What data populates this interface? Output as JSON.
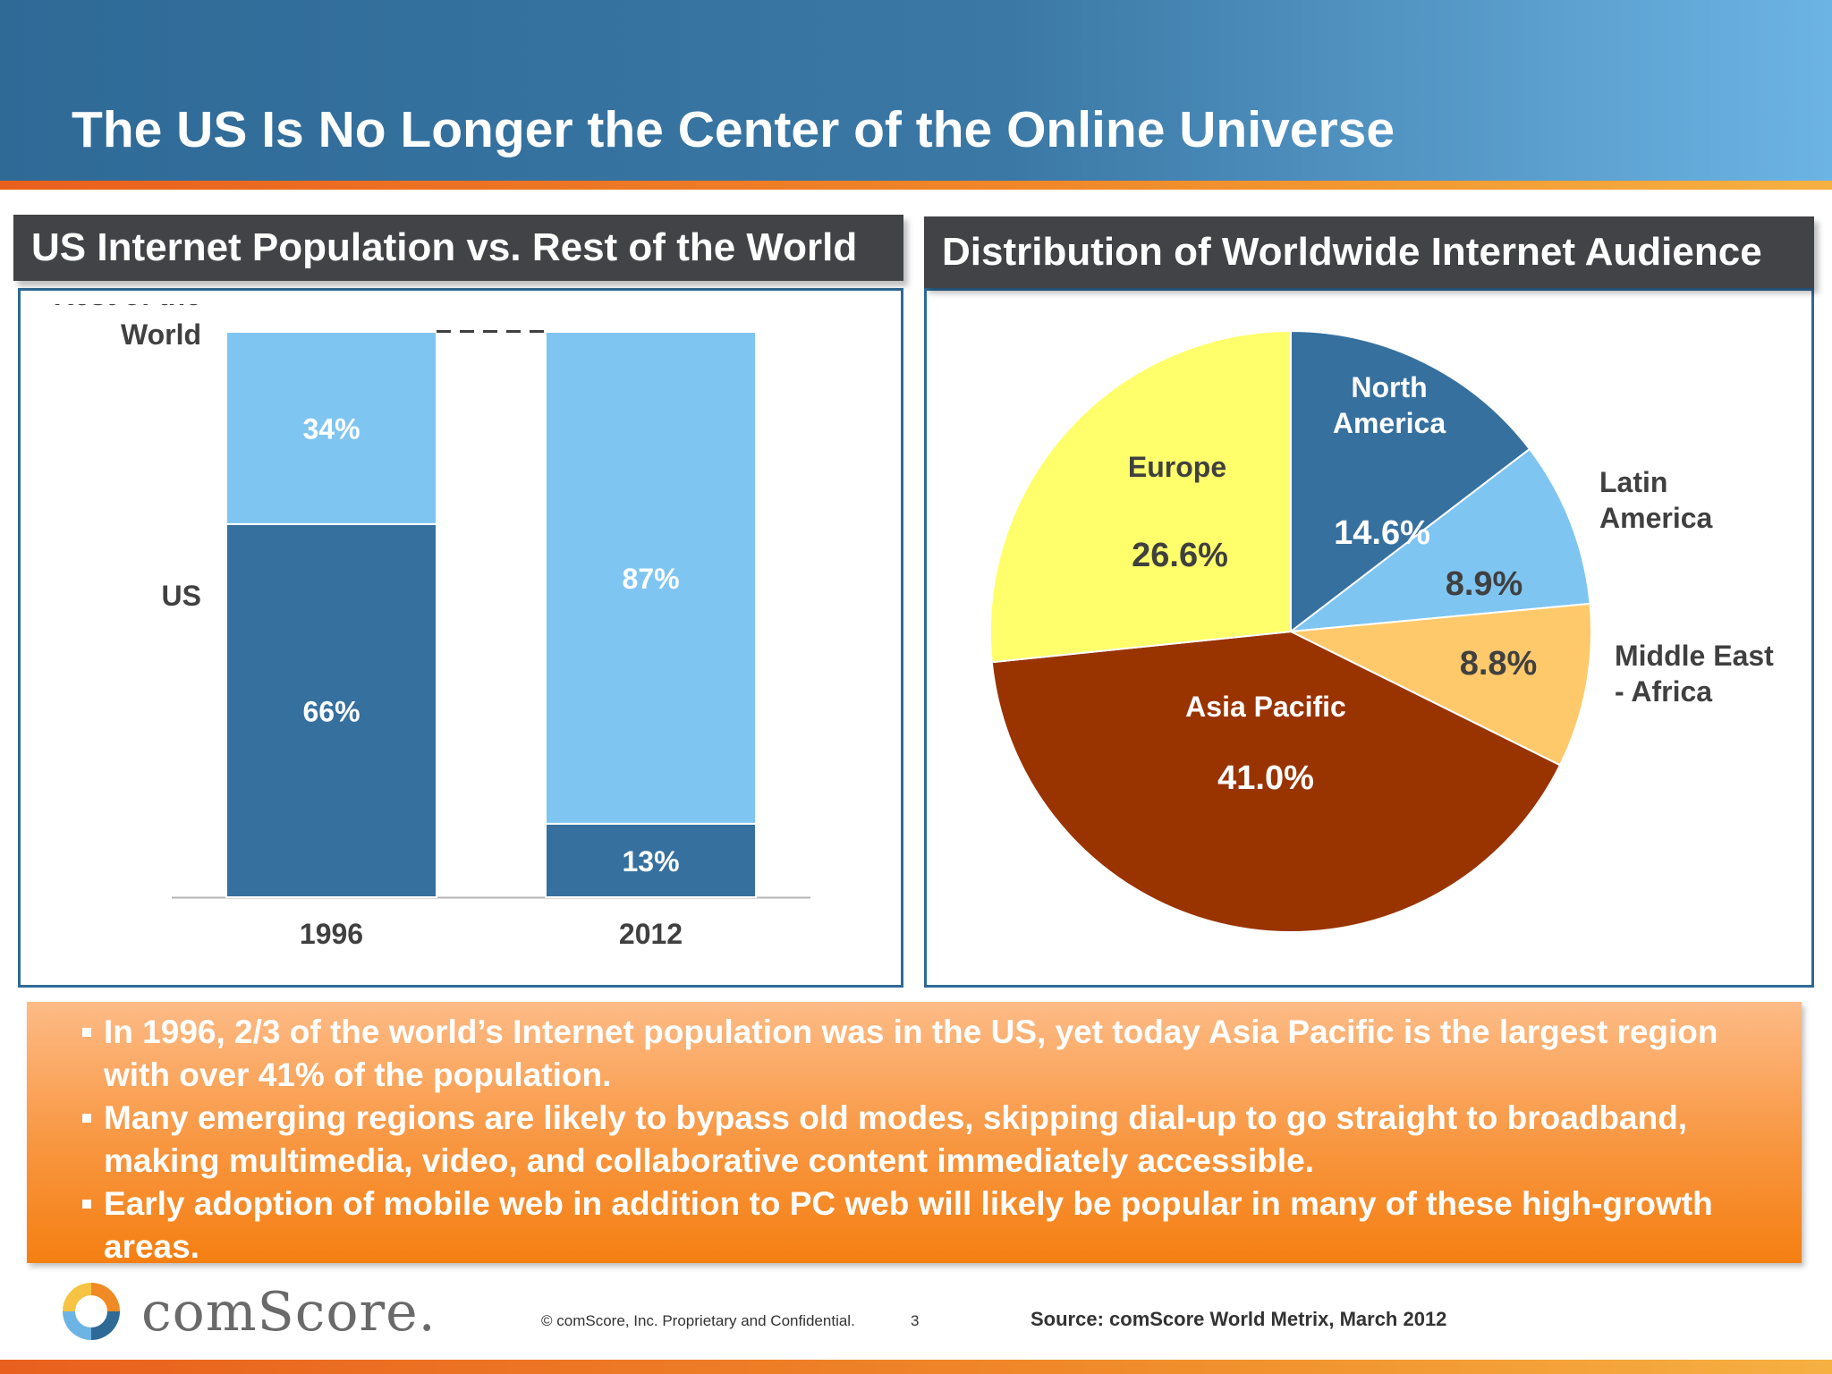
{
  "title": "The US Is No Longer the Center of the Online Universe",
  "panels": {
    "left_header": "US Internet Population vs. Rest of the World",
    "right_header": "Distribution of Worldwide Internet Audience"
  },
  "colors": {
    "us": "#36709f",
    "rest_of_world": "#7fc5f2",
    "north_america": "#36709f",
    "latin_america": "#7fc5f2",
    "middle_east_africa": "#fec96b",
    "asia_pacific": "#993300",
    "europe": "#ffff6b"
  },
  "chart_data": [
    {
      "type": "bar",
      "stacked": true,
      "percent": true,
      "categories": [
        "1996",
        "2012"
      ],
      "series": [
        {
          "name": "US",
          "values": [
            66,
            13
          ]
        },
        {
          "name": "Rest of the World",
          "values": [
            34,
            87
          ]
        }
      ],
      "data_labels": [
        [
          "66%",
          "13%"
        ],
        [
          "34%",
          "87%"
        ]
      ],
      "series_label_lines": [
        [
          "US"
        ],
        [
          "Rest of the",
          "World"
        ]
      ],
      "ylim": [
        0,
        100
      ],
      "grid": false
    },
    {
      "type": "pie",
      "slices": [
        {
          "label_lines": [
            "North",
            "America"
          ],
          "value": 14.6,
          "value_label": "14.6%"
        },
        {
          "label_lines": [
            "Latin",
            "America"
          ],
          "value": 8.9,
          "value_label": "8.9%"
        },
        {
          "label_lines": [
            "Middle East",
            "- Africa"
          ],
          "value": 8.8,
          "value_label": "8.8%"
        },
        {
          "label_lines": [
            "Asia Pacific"
          ],
          "value": 41.0,
          "value_label": "41.0%"
        },
        {
          "label_lines": [
            "Europe"
          ],
          "value": 26.6,
          "value_label": "26.6%"
        }
      ]
    }
  ],
  "bullets": [
    "In 1996, 2/3 of the world’s Internet population was in the US, yet today Asia Pacific is the largest region with over 41% of the population.",
    "Many emerging regions are likely to bypass old modes, skipping dial-up to go straight to broadband, making multimedia, video, and collaborative content immediately accessible.",
    "Early adoption of mobile web in addition to PC web will likely be popular in many of these high-growth areas."
  ],
  "footer": {
    "logo_text": "comScore.",
    "copyright": "© comScore, Inc.  Proprietary and Confidential.",
    "page_number": "3",
    "source": "Source:  comScore World Metrix, March 2012"
  }
}
